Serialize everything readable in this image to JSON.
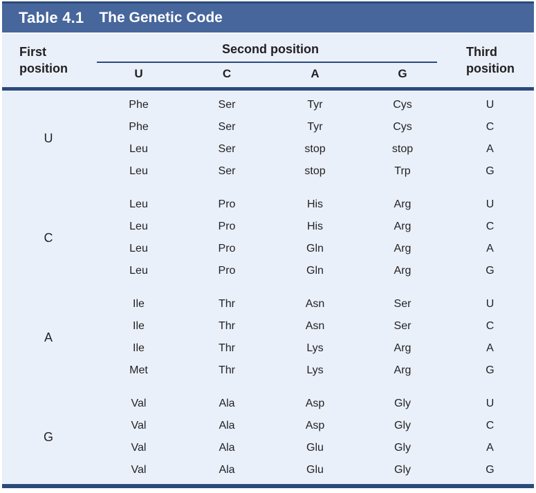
{
  "title": {
    "label": "Table 4.1",
    "text": "The Genetic Code"
  },
  "header": {
    "first": {
      "line1": "First",
      "line2": "position"
    },
    "second": "Second position",
    "second_cols": [
      "U",
      "C",
      "A",
      "G"
    ],
    "third": {
      "line1": "Third",
      "line2": "position"
    }
  },
  "colors": {
    "header_bar": "#46669c",
    "rule": "#2b4a7c",
    "body_background": "#e9f0fa",
    "title_text": "#ffffff",
    "body_text": "#231f20"
  },
  "groups": [
    {
      "first": "U",
      "rows": [
        {
          "cells": [
            "Phe",
            "Ser",
            "Tyr",
            "Cys"
          ],
          "third": "U"
        },
        {
          "cells": [
            "Phe",
            "Ser",
            "Tyr",
            "Cys"
          ],
          "third": "C"
        },
        {
          "cells": [
            "Leu",
            "Ser",
            "stop",
            "stop"
          ],
          "third": "A"
        },
        {
          "cells": [
            "Leu",
            "Ser",
            "stop",
            "Trp"
          ],
          "third": "G"
        }
      ]
    },
    {
      "first": "C",
      "rows": [
        {
          "cells": [
            "Leu",
            "Pro",
            "His",
            "Arg"
          ],
          "third": "U"
        },
        {
          "cells": [
            "Leu",
            "Pro",
            "His",
            "Arg"
          ],
          "third": "C"
        },
        {
          "cells": [
            "Leu",
            "Pro",
            "Gln",
            "Arg"
          ],
          "third": "A"
        },
        {
          "cells": [
            "Leu",
            "Pro",
            "Gln",
            "Arg"
          ],
          "third": "G"
        }
      ]
    },
    {
      "first": "A",
      "rows": [
        {
          "cells": [
            "Ile",
            "Thr",
            "Asn",
            "Ser"
          ],
          "third": "U"
        },
        {
          "cells": [
            "Ile",
            "Thr",
            "Asn",
            "Ser"
          ],
          "third": "C"
        },
        {
          "cells": [
            "Ile",
            "Thr",
            "Lys",
            "Arg"
          ],
          "third": "A"
        },
        {
          "cells": [
            "Met",
            "Thr",
            "Lys",
            "Arg"
          ],
          "third": "G"
        }
      ]
    },
    {
      "first": "G",
      "rows": [
        {
          "cells": [
            "Val",
            "Ala",
            "Asp",
            "Gly"
          ],
          "third": "U"
        },
        {
          "cells": [
            "Val",
            "Ala",
            "Asp",
            "Gly"
          ],
          "third": "C"
        },
        {
          "cells": [
            "Val",
            "Ala",
            "Glu",
            "Gly"
          ],
          "third": "A"
        },
        {
          "cells": [
            "Val",
            "Ala",
            "Glu",
            "Gly"
          ],
          "third": "G"
        }
      ]
    }
  ]
}
